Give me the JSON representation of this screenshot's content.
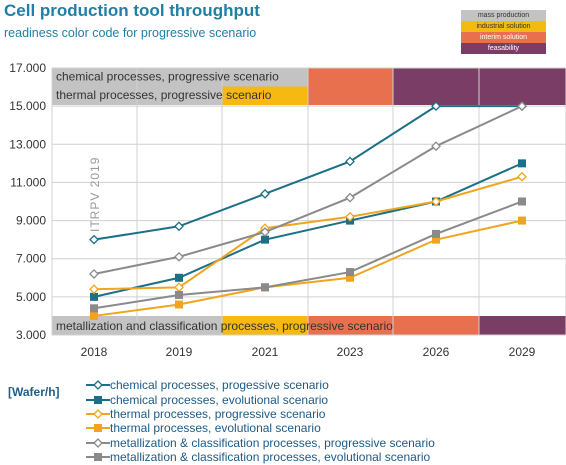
{
  "header": {
    "title": "Cell production tool throughput",
    "subtitle": "readiness color code for progressive scenario"
  },
  "readiness_legend": [
    {
      "label": "mass production",
      "color": "#c3c3c3",
      "text_color": "#333333"
    },
    {
      "label": "industrial solution",
      "color": "#f5b912",
      "text_color": "#333333"
    },
    {
      "label": "interim solution",
      "color": "#e9704e",
      "text_color": "#ffffff"
    },
    {
      "label": "feasability",
      "color": "#7a3e66",
      "text_color": "#ffffff"
    }
  ],
  "colors": {
    "teal": "#1b6f86",
    "orange": "#f0a51e",
    "gray": "#8a8a8a"
  },
  "unit_label": "[Wafer/h]",
  "watermark": "ITRPV 2019",
  "chart_data": {
    "type": "line",
    "categories": [
      "2018",
      "2019",
      "2021",
      "2023",
      "2026",
      "2029"
    ],
    "ylim": [
      3000,
      17000
    ],
    "yticks": [
      {
        "v": 3000,
        "label": "3.000"
      },
      {
        "v": 5000,
        "label": "5.000"
      },
      {
        "v": 7000,
        "label": "7.000"
      },
      {
        "v": 9000,
        "label": "9.000"
      },
      {
        "v": 11000,
        "label": "11.000"
      },
      {
        "v": 13000,
        "label": "13.000"
      },
      {
        "v": 15000,
        "label": "15.000"
      },
      {
        "v": 17000,
        "label": "17.000"
      }
    ],
    "grid": true,
    "series": [
      {
        "name": "chemical processes, progessive scenario",
        "values": [
          8000,
          8700,
          10400,
          12100,
          15000,
          15000
        ],
        "color": "#1b6f86",
        "marker": "open-diamond"
      },
      {
        "name": "chemical processes, evolutional scenario",
        "values": [
          5000,
          6000,
          8000,
          9000,
          10000,
          12000
        ],
        "color": "#1b6f86",
        "marker": "square"
      },
      {
        "name": "thermal processes, progressive scenario",
        "values": [
          5400,
          5500,
          8600,
          9200,
          10000,
          11300
        ],
        "color": "#f0a51e",
        "marker": "open-diamond"
      },
      {
        "name": "thermal processes, evolutional scenario",
        "values": [
          4000,
          4600,
          5500,
          6000,
          8000,
          9000
        ],
        "color": "#f0a51e",
        "marker": "square"
      },
      {
        "name": "metallization & classification processes, progressive scenario",
        "values": [
          6200,
          7100,
          8400,
          10200,
          12900,
          15000
        ],
        "color": "#8a8a8a",
        "marker": "open-diamond"
      },
      {
        "name": "metallization & classification processes, evolutional scenario",
        "values": [
          4400,
          5100,
          5500,
          6300,
          8300,
          10000
        ],
        "color": "#8a8a8a",
        "marker": "square"
      }
    ],
    "readiness_bands": [
      {
        "label": "chemical processes, progressive scenario",
        "segments": [
          {
            "from": 2018,
            "to": 2023,
            "readiness": "mass production"
          },
          {
            "from": 2023,
            "to": 2026,
            "readiness": "interim solution"
          },
          {
            "from": 2026,
            "to": 2029,
            "readiness": "feasability"
          }
        ]
      },
      {
        "label": "thermal processes, progressive scenario",
        "segments": [
          {
            "from": 2018,
            "to": 2021,
            "readiness": "mass production"
          },
          {
            "from": 2021,
            "to": 2023,
            "readiness": "industrial solution"
          },
          {
            "from": 2023,
            "to": 2026,
            "readiness": "interim solution"
          },
          {
            "from": 2026,
            "to": 2029,
            "readiness": "feasability"
          }
        ]
      },
      {
        "label": "metallization and classification processes, progressive scenario",
        "segments": [
          {
            "from": 2018,
            "to": 2021,
            "readiness": "mass production"
          },
          {
            "from": 2021,
            "to": 2023,
            "readiness": "industrial solution"
          },
          {
            "from": 2023,
            "to": 2029,
            "readiness": "interim solution"
          },
          {
            "from": 2029,
            "to": 2029,
            "readiness": "feasability"
          }
        ]
      }
    ]
  }
}
